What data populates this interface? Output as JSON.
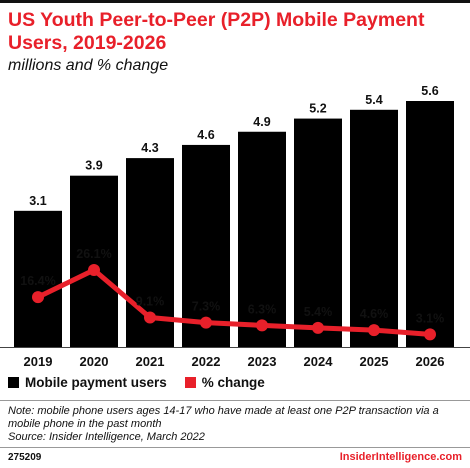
{
  "header": {
    "title": "US Youth Peer-to-Peer (P2P) Mobile Payment Users, 2019-2026",
    "subtitle": "millions and % change"
  },
  "legend": {
    "bars_label": "Mobile payment users",
    "line_label": "% change"
  },
  "footer": {
    "note": "Note: mobile phone users ages 14-17 who have made at least one P2P transaction via a mobile phone in the past month",
    "source": "Source: Insider Intelligence, March 2022",
    "chart_id": "275209",
    "brand": "InsiderIntelligence.com"
  },
  "colors": {
    "bars": "#000000",
    "line": "#e8202a",
    "title": "#e8202a"
  },
  "chart_data": {
    "type": "bar",
    "title": "US Youth Peer-to-Peer (P2P) Mobile Payment Users, 2019-2026",
    "subtitle": "millions and % change",
    "categories": [
      "2019",
      "2020",
      "2021",
      "2022",
      "2023",
      "2024",
      "2025",
      "2026"
    ],
    "series": [
      {
        "name": "Mobile payment users",
        "type": "bar",
        "values": [
          3.1,
          3.9,
          4.3,
          4.6,
          4.9,
          5.2,
          5.4,
          5.6
        ],
        "labels": [
          "3.1",
          "3.9",
          "4.3",
          "4.6",
          "4.9",
          "5.2",
          "5.4",
          "5.6"
        ]
      },
      {
        "name": "% change",
        "type": "line",
        "values": [
          16.4,
          26.1,
          9.1,
          7.3,
          6.3,
          5.4,
          4.6,
          3.1
        ],
        "labels": [
          "16.4%",
          "26.1%",
          "9.1%",
          "7.3%",
          "6.3%",
          "5.4%",
          "4.6%",
          "3.1%"
        ]
      }
    ],
    "legend_position": "bottom-left",
    "grid": false
  }
}
